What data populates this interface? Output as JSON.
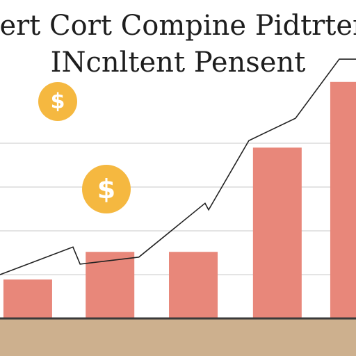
{
  "chart_data": {
    "type": "bar",
    "title": "pert Cort Compine Pidtrter",
    "subtitle": "INcnltent Pensent",
    "x": [
      0.78,
      3.09,
      5.43,
      7.79,
      9.96
    ],
    "values": [
      0.89,
      1.52,
      1.52,
      3.9,
      5.4
    ],
    "color": "#e8877a",
    "line": {
      "x": [
        0,
        2.05,
        2.25,
        3.9,
        5.76,
        5.86,
        6.99,
        8.3,
        9.53,
        10
      ],
      "values": [
        1.0,
        1.63,
        1.24,
        1.4,
        2.63,
        2.48,
        4.06,
        4.57,
        5.92,
        5.92
      ],
      "color": "#222222"
    },
    "xlim": [
      0,
      10
    ],
    "ylim": [
      0,
      7
    ],
    "yticks": [
      1,
      2,
      3,
      4
    ],
    "grid": true,
    "coins": [
      "$",
      "$"
    ],
    "coin_color": "#f5b840"
  }
}
